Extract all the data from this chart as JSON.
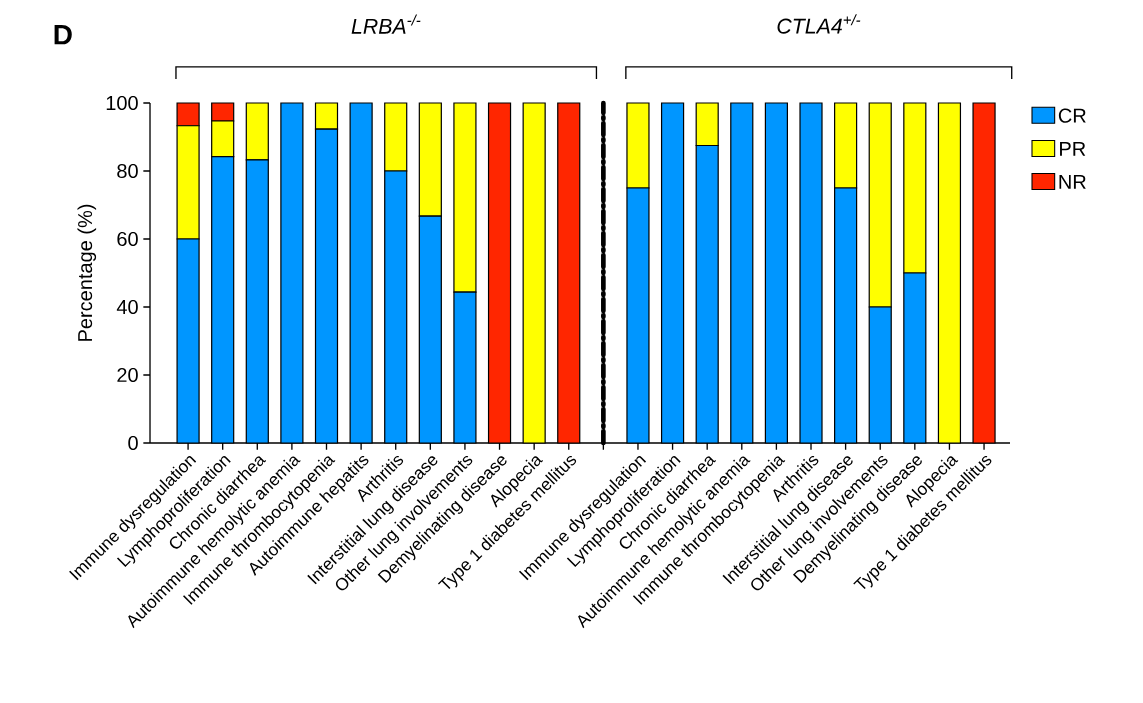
{
  "chart_data": {
    "type": "bar",
    "stacked": true,
    "ylabel": "Percentage (%)",
    "annotations": [
      "D",
      "*LRBA*$^{-/-}$",
      "*CTLA4*$^{+/-}$"
    ],
    "categories": [
      "Immune dysregulation",
      "Lymphoproliferation",
      "Chronic diarrhea",
      "Autoimmune hemolytic anemia",
      "Immune thrombocytopenia",
      "Autoimmune hepatits",
      "Arthritis",
      "Interstitial lung disease",
      "Other lung involvements",
      "Demyelinating disease",
      "Alopecia",
      "Type 1 diabetes mellitus",
      null,
      "Immune dysregulation",
      "Lymphoproliferation",
      "Chronic diarrhea",
      "Autoimmune hemolytic anemia",
      "Immune thrombocytopenia",
      "Arthritis",
      "Interstitial lung disease",
      "Other lung involvements",
      "Demyelinating disease",
      "Alopecia",
      "Type 1 diabetes mellitus"
    ],
    "series": [
      {
        "name": "CR",
        "color": "#0096ff",
        "values": [
          60,
          84.2,
          83.3,
          100,
          92.3,
          100,
          80,
          66.7,
          44.4,
          0,
          0,
          0,
          null,
          75,
          100,
          87.5,
          100,
          100,
          100,
          75,
          40,
          50,
          0,
          0
        ]
      },
      {
        "name": "PR",
        "color": "#ffff00",
        "values": [
          33.3,
          10.5,
          16.7,
          0,
          7.7,
          0,
          20,
          33.3,
          55.6,
          0,
          100,
          0,
          null,
          25,
          0,
          12.5,
          0,
          0,
          0,
          25,
          60,
          50,
          100,
          0
        ]
      },
      {
        "name": "NR",
        "color": "#ff2600",
        "values": [
          6.7,
          5.3,
          0,
          0,
          0,
          0,
          0,
          0,
          0,
          100,
          0,
          100,
          null,
          0,
          0,
          0,
          0,
          0,
          0,
          0,
          0,
          0,
          0,
          100
        ]
      }
    ],
    "ylim": [
      0,
      100
    ],
    "yticks": [
      0,
      20,
      40,
      60,
      80,
      100
    ],
    "legend": "right"
  }
}
